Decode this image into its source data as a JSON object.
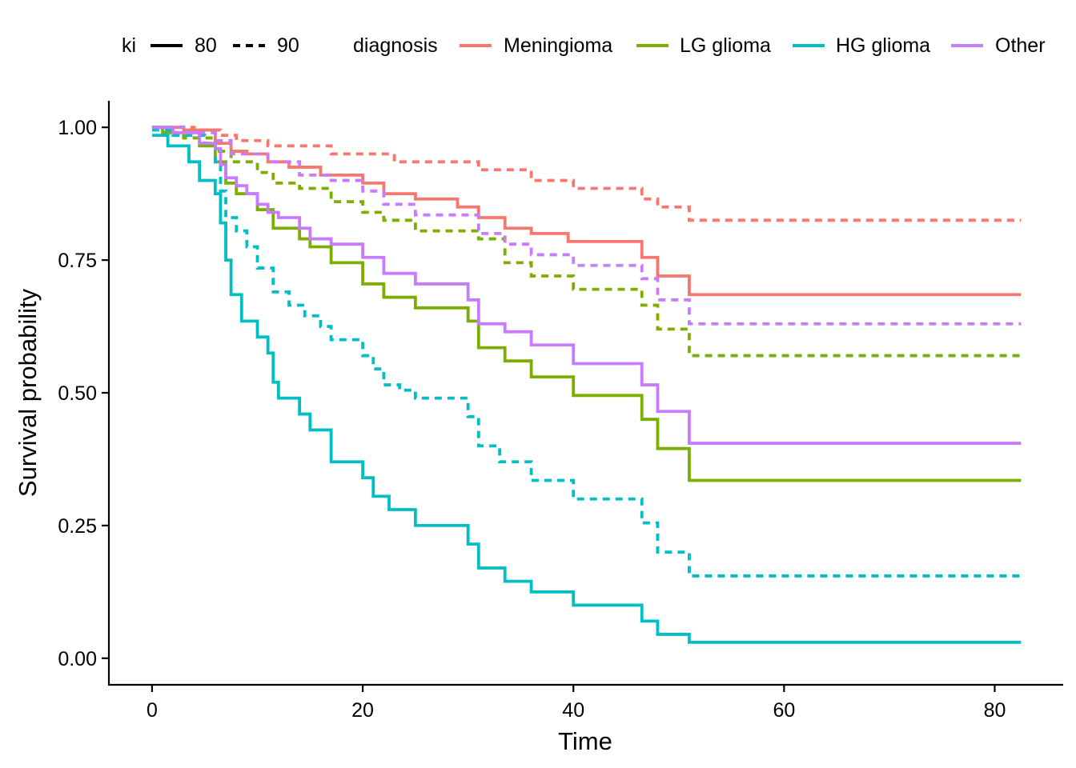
{
  "chart_data": {
    "type": "line",
    "xlabel": "Time",
    "ylabel": "Survival probability",
    "xlim": [
      -4.1,
      86.5
    ],
    "ylim": [
      -0.05,
      1.05
    ],
    "x_ticks": [
      0,
      20,
      40,
      60,
      80
    ],
    "y_ticks": [
      0.0,
      0.25,
      0.5,
      0.75,
      1.0
    ],
    "x_tick_labels": [
      "0",
      "20",
      "40",
      "60",
      "80"
    ],
    "y_tick_labels": [
      "0.00",
      "0.25",
      "0.50",
      "0.75",
      "1.00"
    ],
    "grid": false,
    "legend_position": "top",
    "legend": {
      "linetype_title": "ki",
      "linetypes": [
        {
          "label": "80",
          "dash": "solid"
        },
        {
          "label": "90",
          "dash": "dashed"
        }
      ],
      "color_title": "diagnosis",
      "colors": [
        {
          "label": "Meningioma",
          "color": "#F8766D"
        },
        {
          "label": "LG glioma",
          "color": "#7CAE00"
        },
        {
          "label": "HG glioma",
          "color": "#00BFC4"
        },
        {
          "label": "Other",
          "color": "#C77CFF"
        }
      ]
    },
    "series": [
      {
        "diagnosis": "Meningioma",
        "ki": "80",
        "color": "#F8766D",
        "dash": "solid",
        "x": [
          0,
          3,
          6,
          7.5,
          9,
          11,
          13,
          16,
          20,
          22,
          25,
          29,
          31,
          33.5,
          36,
          39.5,
          46.5,
          48,
          51,
          82.5
        ],
        "y": [
          1.0,
          0.995,
          0.97,
          0.955,
          0.95,
          0.935,
          0.925,
          0.91,
          0.895,
          0.875,
          0.865,
          0.85,
          0.83,
          0.81,
          0.8,
          0.785,
          0.755,
          0.72,
          0.685,
          0.685
        ]
      },
      {
        "diagnosis": "Meningioma",
        "ki": "90",
        "color": "#F8766D",
        "dash": "dashed",
        "x": [
          0,
          4,
          6.5,
          8,
          11,
          17,
          23,
          31,
          36,
          40,
          46.5,
          48,
          51,
          82.5
        ],
        "y": [
          1.0,
          0.995,
          0.985,
          0.975,
          0.965,
          0.95,
          0.935,
          0.92,
          0.9,
          0.885,
          0.865,
          0.85,
          0.825,
          0.825
        ]
      },
      {
        "diagnosis": "LG glioma",
        "ki": "80",
        "color": "#7CAE00",
        "dash": "solid",
        "x": [
          0,
          1,
          4.5,
          6,
          7,
          8,
          10,
          11.5,
          14,
          15,
          17,
          20,
          22,
          25,
          30,
          31,
          33.5,
          36,
          40,
          46.5,
          48,
          51,
          82.5
        ],
        "y": [
          1.0,
          0.99,
          0.965,
          0.935,
          0.895,
          0.875,
          0.845,
          0.81,
          0.79,
          0.775,
          0.745,
          0.705,
          0.68,
          0.66,
          0.635,
          0.585,
          0.56,
          0.53,
          0.495,
          0.45,
          0.395,
          0.335,
          0.335
        ]
      },
      {
        "diagnosis": "LG glioma",
        "ki": "90",
        "color": "#7CAE00",
        "dash": "dashed",
        "x": [
          0,
          3,
          6,
          7.5,
          10,
          11.5,
          14,
          17,
          20,
          22,
          25,
          31,
          33.5,
          36,
          40,
          46.5,
          48,
          51,
          82.5
        ],
        "y": [
          1.0,
          0.98,
          0.955,
          0.935,
          0.915,
          0.895,
          0.885,
          0.86,
          0.84,
          0.825,
          0.805,
          0.79,
          0.745,
          0.72,
          0.695,
          0.665,
          0.62,
          0.57,
          0.57
        ]
      },
      {
        "diagnosis": "HG glioma",
        "ki": "80",
        "color": "#00BFC4",
        "dash": "solid",
        "x": [
          0,
          1.5,
          3.5,
          4.5,
          6,
          6.5,
          7,
          7.5,
          8.5,
          10,
          11,
          11.5,
          12,
          14,
          15,
          17,
          20,
          21,
          22.5,
          25,
          30,
          31,
          33.5,
          36,
          40,
          46.5,
          48,
          51,
          82.5
        ],
        "y": [
          0.985,
          0.965,
          0.935,
          0.9,
          0.875,
          0.82,
          0.75,
          0.685,
          0.635,
          0.605,
          0.575,
          0.52,
          0.49,
          0.46,
          0.43,
          0.37,
          0.34,
          0.305,
          0.28,
          0.25,
          0.215,
          0.17,
          0.145,
          0.125,
          0.1,
          0.07,
          0.045,
          0.03,
          0.03
        ]
      },
      {
        "diagnosis": "HG glioma",
        "ki": "90",
        "color": "#00BFC4",
        "dash": "dashed",
        "x": [
          0,
          2,
          5,
          6,
          6.5,
          7,
          8,
          9,
          10,
          11.5,
          13,
          14.5,
          16,
          17,
          20,
          21,
          22,
          23.5,
          25,
          30,
          31,
          33,
          36,
          40,
          46.5,
          48,
          51,
          82.5
        ],
        "y": [
          0.995,
          0.985,
          0.97,
          0.935,
          0.88,
          0.83,
          0.805,
          0.775,
          0.735,
          0.69,
          0.665,
          0.645,
          0.625,
          0.6,
          0.57,
          0.545,
          0.515,
          0.505,
          0.49,
          0.455,
          0.4,
          0.37,
          0.335,
          0.3,
          0.255,
          0.2,
          0.155,
          0.155
        ]
      },
      {
        "diagnosis": "Other",
        "ki": "80",
        "color": "#C77CFF",
        "dash": "solid",
        "x": [
          0,
          2,
          4.5,
          6,
          6.5,
          7,
          8,
          9,
          10,
          11,
          12,
          14,
          15,
          17,
          20,
          22,
          25,
          30,
          31,
          33.5,
          36,
          40,
          46.5,
          48,
          51,
          82.5
        ],
        "y": [
          1.0,
          0.99,
          0.97,
          0.96,
          0.93,
          0.905,
          0.89,
          0.875,
          0.855,
          0.84,
          0.83,
          0.81,
          0.79,
          0.78,
          0.755,
          0.725,
          0.705,
          0.675,
          0.63,
          0.615,
          0.59,
          0.555,
          0.515,
          0.465,
          0.405,
          0.405
        ]
      },
      {
        "diagnosis": "Other",
        "ki": "90",
        "color": "#C77CFF",
        "dash": "dashed",
        "x": [
          0,
          3,
          6,
          7.5,
          11,
          14,
          17,
          20,
          22,
          25,
          31,
          33.5,
          36,
          40,
          46.5,
          48,
          51,
          82.5
        ],
        "y": [
          1.0,
          0.99,
          0.975,
          0.95,
          0.935,
          0.91,
          0.9,
          0.88,
          0.855,
          0.835,
          0.8,
          0.78,
          0.76,
          0.74,
          0.715,
          0.675,
          0.63,
          0.63
        ]
      }
    ]
  }
}
